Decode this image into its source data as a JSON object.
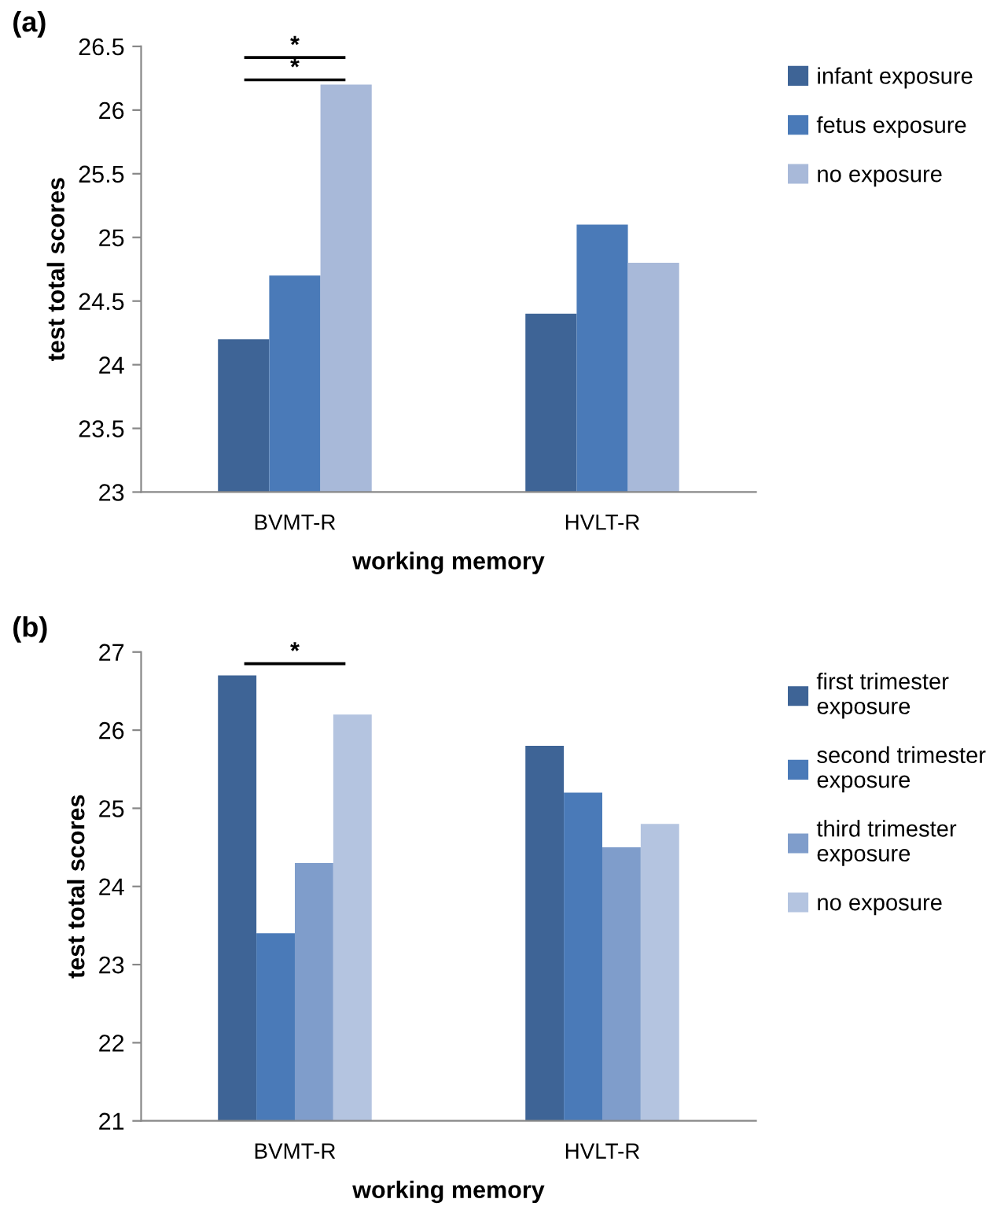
{
  "chart_data": [
    {
      "type": "bar",
      "title": "(a)",
      "xlabel": "working memory",
      "ylabel": "test total scores",
      "categories": [
        "BVMT-R",
        "HVLT-R"
      ],
      "series": [
        {
          "name": "infant exposure",
          "color": "#3e6496",
          "values": [
            24.2,
            24.4
          ]
        },
        {
          "name": "fetus exposure",
          "color": "#4a7ab8",
          "values": [
            24.7,
            25.1
          ]
        },
        {
          "name": "no exposure",
          "color": "#a8b9d9",
          "values": [
            26.2,
            24.8
          ]
        }
      ],
      "ylim": [
        23,
        26.5
      ],
      "yticks": [
        23,
        23.5,
        24,
        24.5,
        25,
        25.5,
        26,
        26.5
      ],
      "annotations": [
        "*",
        "*"
      ],
      "legend": "right",
      "grid": false
    },
    {
      "type": "bar",
      "title": "(b)",
      "xlabel": "working memory",
      "ylabel": "test total scores",
      "categories": [
        "BVMT-R",
        "HVLT-R"
      ],
      "series": [
        {
          "name": "first trimester exposure",
          "color": "#3e6496",
          "values": [
            26.7,
            25.8
          ]
        },
        {
          "name": "second trimester exposure",
          "color": "#4a7ab8",
          "values": [
            23.4,
            25.2
          ]
        },
        {
          "name": "third trimester exposure",
          "color": "#7f9dcb",
          "values": [
            24.3,
            24.5
          ]
        },
        {
          "name": "no exposure",
          "color": "#b4c4e0",
          "values": [
            26.2,
            24.8
          ]
        }
      ],
      "ylim": [
        21,
        27
      ],
      "yticks": [
        21,
        22,
        23,
        24,
        25,
        26,
        27
      ],
      "annotations": [
        "*"
      ],
      "legend": "right",
      "grid": false
    }
  ]
}
